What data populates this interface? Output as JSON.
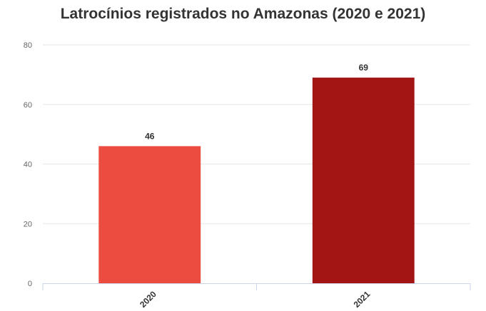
{
  "chart_data": {
    "type": "bar",
    "title": "Latrocínios registrados no Amazonas (2020 e 2021)",
    "categories": [
      "2020",
      "2021"
    ],
    "values": [
      46,
      69
    ],
    "colors": [
      "#ec4b40",
      "#a31515"
    ],
    "ylim": [
      0,
      80
    ],
    "yticks": [
      0,
      20,
      40,
      60,
      80
    ],
    "xlabel": "",
    "ylabel": "",
    "grid": true,
    "data_labels": true
  }
}
